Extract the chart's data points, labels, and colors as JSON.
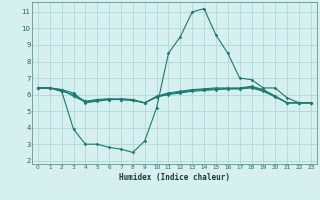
{
  "xlabel": "Humidex (Indice chaleur)",
  "bg_color": "#d6f0f0",
  "grid_color": "#b0d8d8",
  "line_color": "#1a7a6e",
  "xlim": [
    -0.5,
    23.5
  ],
  "ylim": [
    1.8,
    11.6
  ],
  "yticks": [
    2,
    3,
    4,
    5,
    6,
    7,
    8,
    9,
    10,
    11
  ],
  "xticks": [
    0,
    1,
    2,
    3,
    4,
    5,
    6,
    7,
    8,
    9,
    10,
    11,
    12,
    13,
    14,
    15,
    16,
    17,
    18,
    19,
    20,
    21,
    22,
    23
  ],
  "series": [
    {
      "x": [
        0,
        1,
        2,
        3,
        4,
        5,
        6,
        7,
        8,
        9,
        10,
        11,
        12,
        13,
        14,
        15,
        16,
        17,
        18,
        19,
        20,
        21,
        22,
        23
      ],
      "y": [
        6.4,
        6.4,
        6.3,
        6.1,
        5.5,
        5.6,
        5.7,
        5.75,
        5.7,
        5.5,
        5.9,
        6.1,
        6.2,
        6.3,
        6.35,
        6.4,
        6.4,
        6.4,
        6.5,
        6.3,
        5.9,
        5.5,
        5.5,
        5.5
      ]
    },
    {
      "x": [
        0,
        1,
        2,
        3,
        4,
        5,
        6,
        7,
        8,
        9,
        10,
        11,
        12,
        13,
        14,
        15,
        16,
        17,
        18,
        19,
        20,
        21,
        22,
        23
      ],
      "y": [
        6.4,
        6.4,
        6.3,
        5.9,
        5.55,
        5.65,
        5.7,
        5.7,
        5.65,
        5.5,
        5.85,
        6.0,
        6.1,
        6.2,
        6.25,
        6.3,
        6.35,
        6.35,
        6.4,
        6.2,
        5.85,
        5.5,
        5.5,
        5.5
      ]
    },
    {
      "x": [
        0,
        1,
        2,
        3,
        4,
        5,
        6,
        7,
        8,
        9,
        10,
        11,
        12,
        13,
        14,
        15,
        16,
        17,
        18,
        19,
        20,
        21,
        22,
        23
      ],
      "y": [
        6.4,
        6.4,
        6.2,
        3.9,
        3.0,
        3.0,
        2.8,
        2.7,
        2.5,
        3.2,
        5.2,
        8.5,
        9.5,
        11.0,
        11.2,
        9.6,
        8.5,
        7.0,
        6.9,
        6.4,
        6.4,
        5.8,
        5.5,
        5.5
      ]
    },
    {
      "x": [
        0,
        1,
        2,
        3,
        4,
        5,
        6,
        7,
        8,
        9,
        10,
        11,
        12,
        13,
        14,
        15,
        16,
        17,
        18,
        19,
        20,
        21,
        22,
        23
      ],
      "y": [
        6.4,
        6.4,
        6.2,
        6.0,
        5.6,
        5.7,
        5.75,
        5.7,
        5.65,
        5.5,
        5.85,
        6.05,
        6.15,
        6.25,
        6.3,
        6.35,
        6.35,
        6.35,
        6.45,
        6.25,
        5.9,
        5.5,
        5.5,
        5.5
      ]
    }
  ]
}
